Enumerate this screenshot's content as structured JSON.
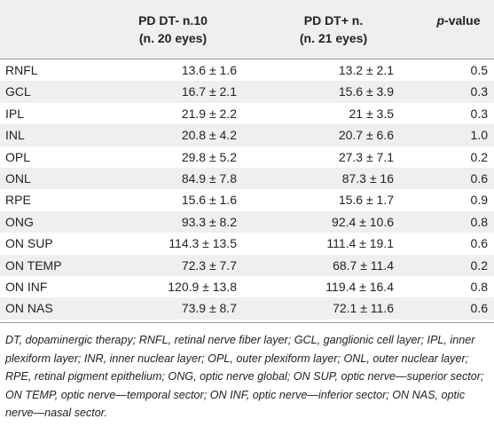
{
  "table": {
    "headers": {
      "col1_line1": "PD DT- n.10",
      "col1_line2": "(n. 20 eyes)",
      "col2_line1": "PD DT+ n.",
      "col2_line2": "(n. 21 eyes)",
      "pvalue_italic": "p",
      "pvalue_rest": "-value"
    },
    "rows": [
      {
        "label": "RNFL",
        "dt_minus": "13.6 ± 1.6",
        "dt_plus": "13.2 ± 2.1",
        "p": "0.5"
      },
      {
        "label": "GCL",
        "dt_minus": "16.7 ± 2.1",
        "dt_plus": "15.6 ± 3.9",
        "p": "0.3"
      },
      {
        "label": "IPL",
        "dt_minus": "21.9 ± 2.2",
        "dt_plus": "21 ± 3.5",
        "p": "0.3"
      },
      {
        "label": "INL",
        "dt_minus": "20.8 ± 4.2",
        "dt_plus": "20.7 ± 6.6",
        "p": "1.0"
      },
      {
        "label": "OPL",
        "dt_minus": "29.8 ± 5.2",
        "dt_plus": "27.3 ± 7.1",
        "p": "0.2"
      },
      {
        "label": "ONL",
        "dt_minus": "84.9 ± 7.8",
        "dt_plus": "87.3 ± 16",
        "p": "0.6"
      },
      {
        "label": "RPE",
        "dt_minus": "15.6 ± 1.6",
        "dt_plus": "15.6 ± 1.7",
        "p": "0.9"
      },
      {
        "label": "ONG",
        "dt_minus": "93.3 ± 8.2",
        "dt_plus": "92.4 ± 10.6",
        "p": "0.8"
      },
      {
        "label": "ON SUP",
        "dt_minus": "114.3 ± 13.5",
        "dt_plus": "111.4 ± 19.1",
        "p": "0.6"
      },
      {
        "label": "ON TEMP",
        "dt_minus": "72.3 ± 7.7",
        "dt_plus": "68.7 ± 11.4",
        "p": "0.2"
      },
      {
        "label": "ON INF",
        "dt_minus": "120.9 ± 13.8",
        "dt_plus": "119.4 ± 16.4",
        "p": "0.8"
      },
      {
        "label": "ON NAS",
        "dt_minus": "73.9 ± 8.7",
        "dt_plus": "72.1 ± 11.6",
        "p": "0.6"
      }
    ],
    "footnote": "DT, dopaminergic therapy; RNFL, retinal nerve fiber layer; GCL, ganglionic cell layer; IPL, inner plexiform layer; INR, inner nuclear layer; OPL, outer plexiform layer; ONL, outer nuclear layer; RPE, retinal pigment epithelium; ONG, optic nerve global; ON SUP, optic nerve—superior sector; ON TEMP, optic nerve—temporal sector; ON INF, optic nerve—inferior sector; ON NAS, optic nerve—nasal sector."
  },
  "colors": {
    "header_bg": "#efefef",
    "stripe_bg": "#efefef",
    "text": "#222222",
    "rule": "#9a9a9a"
  }
}
